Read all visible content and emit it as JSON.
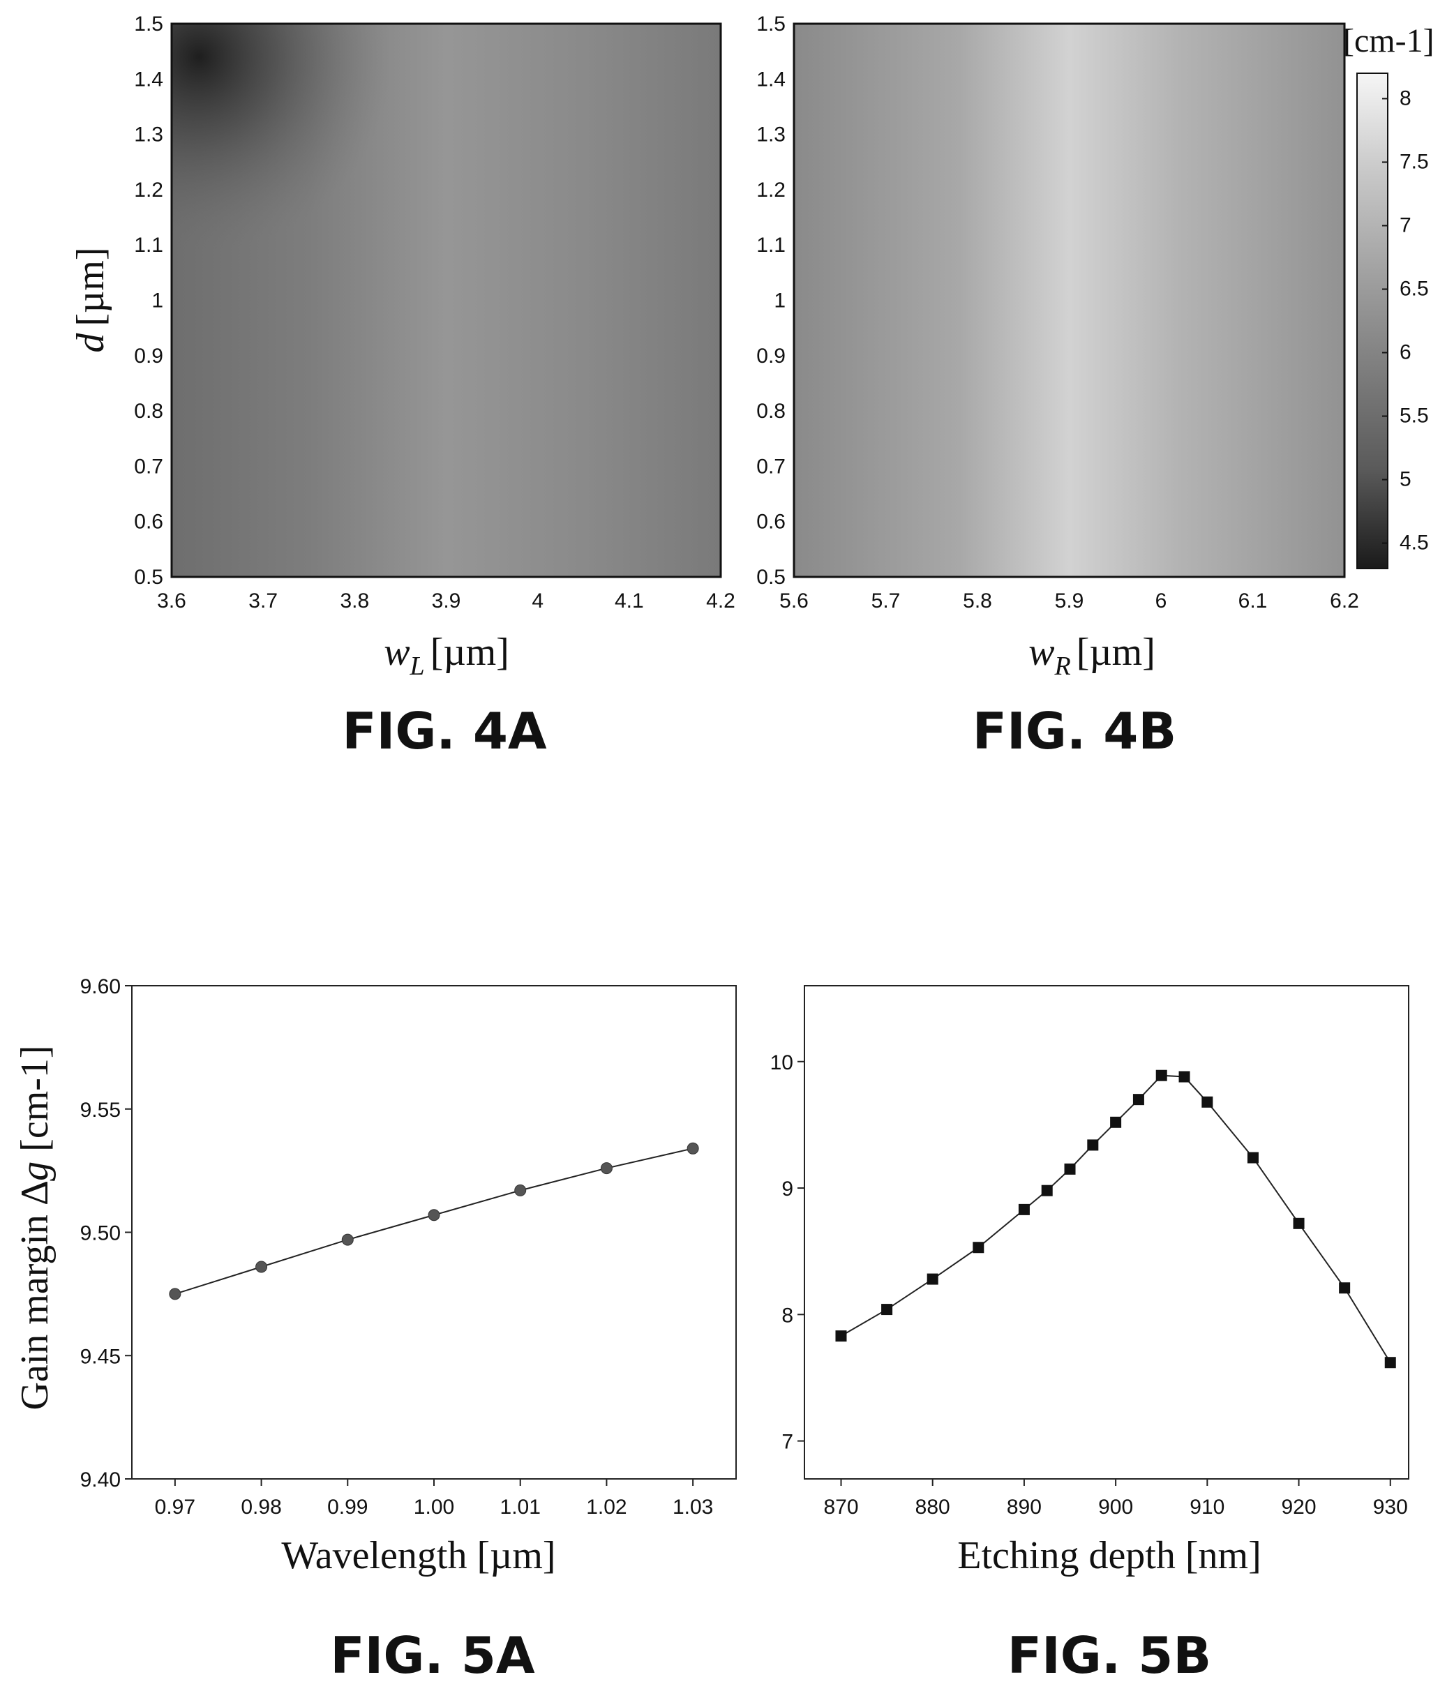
{
  "chart_data": [
    {
      "type": "heatmap",
      "label": "FIG. 4A",
      "xlabel_var": "w",
      "xlabel_sub": "L",
      "xlabel_unit": "[µm]",
      "ylabel_var": "d",
      "ylabel_unit": "[µm]",
      "xlim": [
        3.6,
        4.2
      ],
      "ylim": [
        0.5,
        1.5
      ],
      "xticks": [
        "3.6",
        "3.7",
        "3.8",
        "3.9",
        "4",
        "4.1",
        "4.2"
      ],
      "yticks": [
        "0.5",
        "0.6",
        "0.7",
        "0.8",
        "0.9",
        "1",
        "1.1",
        "1.2",
        "1.3",
        "1.4",
        "1.5"
      ],
      "value_range": [
        4.3,
        8.2
      ],
      "colormap": [
        "#1a1a1a",
        "#f4f4f4"
      ]
    },
    {
      "type": "heatmap",
      "label": "FIG. 4B",
      "xlabel_var": "w",
      "xlabel_sub": "R",
      "xlabel_unit": "[µm]",
      "xlim": [
        5.6,
        6.2
      ],
      "ylim": [
        0.5,
        1.5
      ],
      "xticks": [
        "5.6",
        "5.7",
        "5.8",
        "5.9",
        "6",
        "6.1",
        "6.2"
      ],
      "yticks": [
        "0.5",
        "0.6",
        "0.7",
        "0.8",
        "0.9",
        "1",
        "1.1",
        "1.2",
        "1.3",
        "1.4",
        "1.5"
      ],
      "value_range": [
        4.3,
        8.2
      ],
      "colorbar": {
        "title": "[cm-1]",
        "ticks": [
          "4.5",
          "5",
          "5.5",
          "6",
          "6.5",
          "7",
          "7.5",
          "8"
        ]
      }
    },
    {
      "type": "line",
      "label": "FIG. 5A",
      "xlabel": "Wavelength [µm]",
      "ylabel_text": "Gain margin ",
      "ylabel_var": "∆g",
      "ylabel_unit": " [cm-1]",
      "xlim": [
        0.965,
        1.035
      ],
      "ylim": [
        9.4,
        9.6
      ],
      "xticks": [
        "0.97",
        "0.98",
        "0.99",
        "1.00",
        "1.01",
        "1.02",
        "1.03"
      ],
      "yticks": [
        "9.40",
        "9.45",
        "9.50",
        "9.55",
        "9.60"
      ],
      "marker": "circle",
      "series": [
        {
          "x": [
            0.97,
            0.98,
            0.99,
            1.0,
            1.01,
            1.02,
            1.03
          ],
          "y": [
            9.475,
            9.486,
            9.497,
            9.507,
            9.517,
            9.526,
            9.534
          ]
        }
      ]
    },
    {
      "type": "line",
      "label": "FIG. 5B",
      "xlabel": "Etching depth [nm]",
      "xlim": [
        866,
        932
      ],
      "ylim": [
        6.7,
        10.6
      ],
      "xticks": [
        "870",
        "880",
        "890",
        "900",
        "910",
        "920",
        "930"
      ],
      "yticks": [
        "7",
        "8",
        "9",
        "10"
      ],
      "marker": "square",
      "series": [
        {
          "x": [
            870,
            875,
            880,
            885,
            890,
            892.5,
            895,
            897.5,
            900,
            902.5,
            905,
            907.5,
            910,
            915,
            920,
            925,
            930
          ],
          "y": [
            7.83,
            8.04,
            8.28,
            8.53,
            8.83,
            8.98,
            9.15,
            9.34,
            9.52,
            9.7,
            9.89,
            9.88,
            9.68,
            9.24,
            8.72,
            8.21,
            7.62
          ]
        }
      ]
    }
  ]
}
